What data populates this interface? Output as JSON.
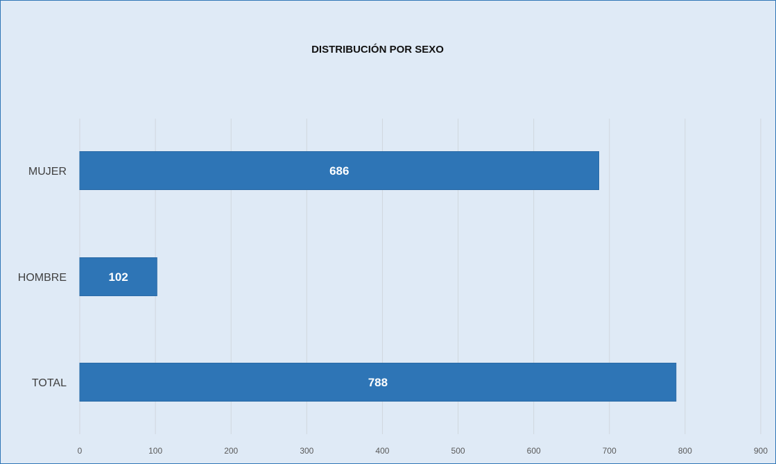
{
  "chart_data": {
    "type": "bar",
    "orientation": "horizontal",
    "title": "DISTRIBUCIÓN POR SEXO",
    "categories": [
      "MUJER",
      "HOMBRE",
      "TOTAL"
    ],
    "values": [
      686,
      102,
      788
    ],
    "xlim": [
      0,
      900
    ],
    "x_ticks": [
      0,
      100,
      200,
      300,
      400,
      500,
      600,
      700,
      800,
      900
    ],
    "xlabel": "",
    "ylabel": "",
    "grid": true,
    "legend": "none",
    "data_labels": true,
    "colors": {
      "bar": "#2e75b6",
      "background": "#dfeaf6",
      "border": "#2e75b6",
      "grid": "#d0d7de"
    }
  }
}
